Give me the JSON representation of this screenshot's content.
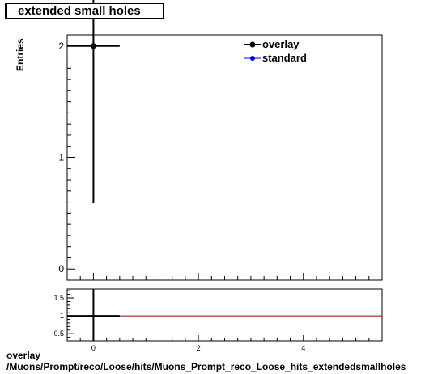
{
  "title": "extended small holes",
  "footer": {
    "line1": "overlay",
    "line2": "/Muons/Prompt/reco/Loose/hits/Muons_Prompt_reco_Loose_hits_extendedsmallholes"
  },
  "colors": {
    "overlay": "#000000",
    "standard": "#0000ff",
    "ratio_line": "#990000"
  },
  "chart_data": [
    {
      "type": "scatter",
      "panel": "main",
      "ylabel": "Entries",
      "xlim": [
        -0.5,
        5.5
      ],
      "ylim": [
        -0.1,
        2.1
      ],
      "grid": false,
      "legend_placement": "top-right",
      "y_ticks": [
        "0",
        "1",
        "2"
      ],
      "series": [
        {
          "name": "overlay",
          "x": [
            0
          ],
          "y": [
            2
          ],
          "xerr": [
            0.5
          ],
          "yerr_low": [
            1.41
          ],
          "yerr_high": [
            0.59
          ]
        },
        {
          "name": "standard",
          "x": [],
          "y": []
        }
      ]
    },
    {
      "type": "line",
      "panel": "ratio",
      "xlim": [
        -0.5,
        5.5
      ],
      "ylim": [
        0.3,
        1.75
      ],
      "y_ticks": [
        "0.5",
        "1",
        "1.5"
      ],
      "x_ticks": [
        "0",
        "2",
        "4"
      ],
      "reference_line": 1.0,
      "series": [
        {
          "x": [
            0
          ],
          "y": [
            1.0
          ],
          "xerr": [
            0.5
          ]
        }
      ]
    }
  ]
}
